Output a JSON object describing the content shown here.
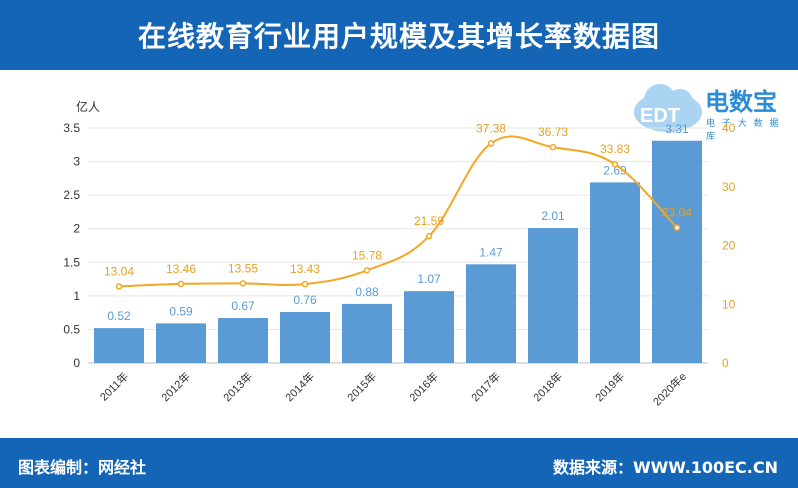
{
  "header": {
    "title": "在线教育行业用户规模及其增长率数据图"
  },
  "footer": {
    "left": "图表编制：网经社",
    "right": "数据来源：WWW.100EC.CN"
  },
  "logo": {
    "text": "电数宝",
    "sub": "电 子 大 数 据 库",
    "icon_text": "EDT"
  },
  "colors": {
    "bar": "#5b9bd5",
    "line": "#f5a623",
    "header": "#1565b6",
    "bar_label": "#5b9bd5",
    "line_label": "#e8a020"
  },
  "chart_data": {
    "type": "bar",
    "categories": [
      "2011年",
      "2012年",
      "2013年",
      "2014年",
      "2015年",
      "2016年",
      "2017年",
      "2018年",
      "2019年",
      "2020年e"
    ],
    "series": [
      {
        "type": "bar",
        "axis": "left",
        "values": [
          0.52,
          0.59,
          0.67,
          0.76,
          0.88,
          1.07,
          1.47,
          2.01,
          2.69,
          3.31
        ]
      },
      {
        "type": "line",
        "axis": "right",
        "values": [
          13.04,
          13.46,
          13.55,
          13.43,
          15.78,
          21.59,
          37.38,
          36.73,
          33.83,
          23.04
        ]
      }
    ],
    "ylabel": "亿人",
    "ylim": [
      0,
      3.5
    ],
    "yticks": [
      "0",
      "0.5",
      "1",
      "1.5",
      "2",
      "2.5",
      "3",
      "3.5"
    ],
    "y2lim": [
      0,
      40
    ],
    "y2ticks": [
      "0",
      "10",
      "20",
      "30",
      "40"
    ],
    "grid": true
  }
}
